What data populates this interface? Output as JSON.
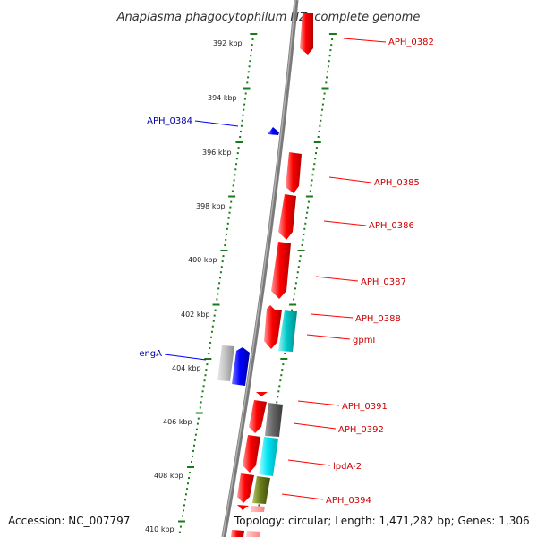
{
  "title": "Anaplasma phagocytophilum HZ, complete genome",
  "footer": {
    "accession": "Accession: NC_007797",
    "summary": "Topology: circular; Length: 1,471,282 bp; Genes: 1,306"
  },
  "colors": {
    "forward_strand": "#ff0000",
    "reverse_strand": "#0000ff",
    "label_forward": "#cc0000",
    "label_reverse": "#0000aa",
    "tick": "#1a7a1a",
    "backbone": "#808080"
  },
  "scale": {
    "unit": "kbp",
    "labels": [
      "392 kbp",
      "394 kbp",
      "396 kbp",
      "398 kbp",
      "400 kbp",
      "402 kbp",
      "404 kbp",
      "406 kbp",
      "408 kbp",
      "410 kbp"
    ]
  },
  "features": [
    {
      "name": "APH_0382",
      "strand": "forward",
      "color": "#ff0000"
    },
    {
      "name": "APH_0384",
      "strand": "reverse",
      "color": "#0000ff"
    },
    {
      "name": "APH_0385",
      "strand": "forward",
      "color": "#ff0000"
    },
    {
      "name": "APH_0386",
      "strand": "forward",
      "color": "#ff0000"
    },
    {
      "name": "APH_0387",
      "strand": "forward",
      "color": "#ff0000"
    },
    {
      "name": "APH_0388",
      "strand": "forward",
      "color": "#ff0000"
    },
    {
      "name": "gpmI",
      "strand": "forward",
      "color": "#00c8c8"
    },
    {
      "name": "engA",
      "strand": "reverse",
      "color": "#0000ff"
    },
    {
      "name": "APH_0391",
      "strand": "forward",
      "color": "#ff0000"
    },
    {
      "name": "APH_0392",
      "strand": "forward",
      "color": "#666666"
    },
    {
      "name": "lpdA-2",
      "strand": "forward",
      "color": "#00e0f0"
    },
    {
      "name": "APH_0394",
      "strand": "forward",
      "color": "#6b7d1a"
    }
  ]
}
